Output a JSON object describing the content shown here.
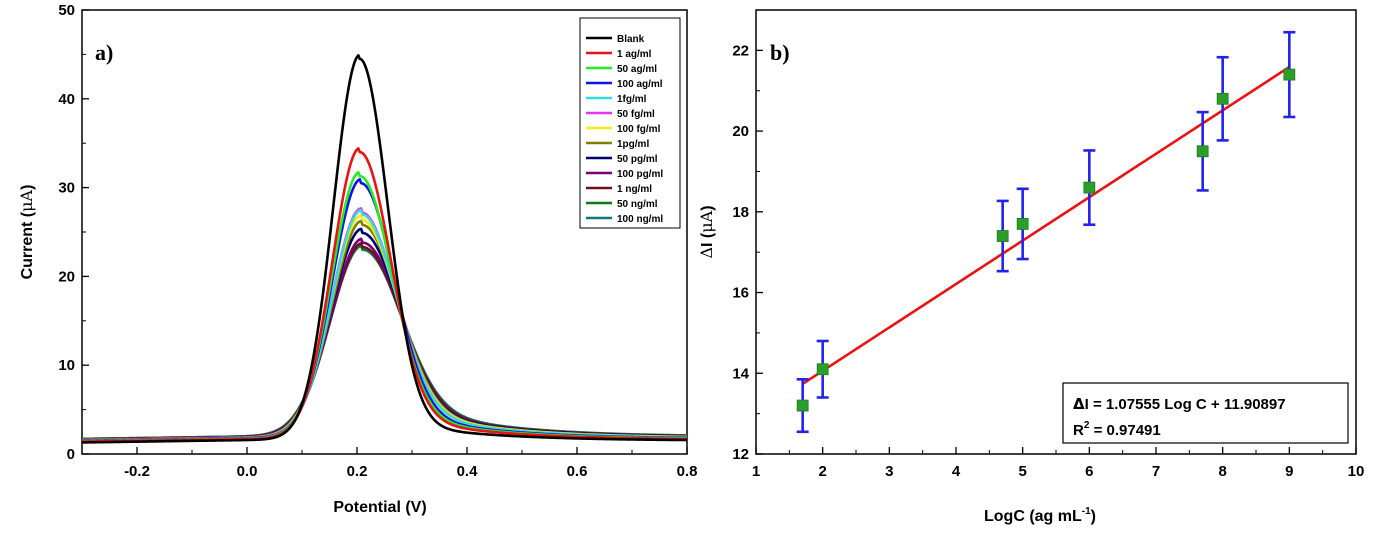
{
  "chart_data": [
    {
      "type": "line",
      "panel_label": "a)",
      "xlabel": "Potential (V)",
      "ylabel_main": "Current (",
      "ylabel_unit_symbol": "μA",
      "ylabel_close": ")",
      "xlim": [
        -0.3,
        0.8
      ],
      "ylim": [
        0,
        50
      ],
      "xticks": [
        -0.2,
        0.0,
        0.2,
        0.4,
        0.6,
        0.8
      ],
      "xtick_labels": [
        "-0.2",
        "0.0",
        "0.2",
        "0.4",
        "0.6",
        "0.8"
      ],
      "yticks": [
        0,
        10,
        20,
        30,
        40,
        50
      ],
      "ytick_labels": [
        "0",
        "10",
        "20",
        "30",
        "40",
        "50"
      ],
      "legend_position": "top-right",
      "series": [
        {
          "name": "Blank",
          "color": "#000000",
          "peak_x": 0.205,
          "peak": 44.5,
          "base_left": 1.3,
          "base_right": 1.5,
          "w_left": 0.048,
          "w_right": 0.05,
          "tail": 3.0
        },
        {
          "name": "1 ag/ml",
          "color": "#ee1111",
          "peak_x": 0.205,
          "peak": 34.0,
          "base_left": 1.4,
          "base_right": 1.6,
          "w_left": 0.05,
          "w_right": 0.055,
          "tail": 4.0
        },
        {
          "name": "50 ag/ml",
          "color": "#22ee22",
          "peak_x": 0.205,
          "peak": 31.3,
          "base_left": 1.45,
          "base_right": 1.65,
          "w_left": 0.051,
          "w_right": 0.057,
          "tail": 4.3
        },
        {
          "name": "100 ag/ml",
          "color": "#1111ee",
          "peak_x": 0.207,
          "peak": 30.5,
          "base_left": 1.5,
          "base_right": 1.7,
          "w_left": 0.052,
          "w_right": 0.058,
          "tail": 4.5
        },
        {
          "name": "1fg/ml",
          "color": "#33dddd",
          "peak_x": 0.208,
          "peak": 27.0,
          "base_left": 1.5,
          "base_right": 1.75,
          "w_left": 0.054,
          "w_right": 0.061,
          "tail": 5.0
        },
        {
          "name": "50 fg/ml",
          "color": "#ee33ee",
          "peak_x": 0.208,
          "peak": 27.2,
          "base_left": 1.55,
          "base_right": 1.75,
          "w_left": 0.054,
          "w_right": 0.061,
          "tail": 5.0
        },
        {
          "name": "100 fg/ml",
          "color": "#eeee11",
          "peak_x": 0.208,
          "peak": 26.4,
          "base_left": 1.55,
          "base_right": 1.8,
          "w_left": 0.055,
          "w_right": 0.062,
          "tail": 5.2
        },
        {
          "name": "1pg/ml",
          "color": "#808000",
          "peak_x": 0.209,
          "peak": 25.8,
          "base_left": 1.6,
          "base_right": 1.8,
          "w_left": 0.055,
          "w_right": 0.063,
          "tail": 5.3
        },
        {
          "name": "50 pg/ml",
          "color": "#000077",
          "peak_x": 0.209,
          "peak": 24.9,
          "base_left": 1.6,
          "base_right": 1.85,
          "w_left": 0.056,
          "w_right": 0.064,
          "tail": 5.4
        },
        {
          "name": "100 pg/ml",
          "color": "#770077",
          "peak_x": 0.21,
          "peak": 23.8,
          "base_left": 1.65,
          "base_right": 1.85,
          "w_left": 0.057,
          "w_right": 0.065,
          "tail": 5.5
        },
        {
          "name": "1 ng/ml",
          "color": "#771111",
          "peak_x": 0.21,
          "peak": 23.3,
          "base_left": 1.65,
          "base_right": 1.9,
          "w_left": 0.058,
          "w_right": 0.066,
          "tail": 5.6
        },
        {
          "name": "50 ng/ml",
          "color": "#117711",
          "peak_x": 0.21,
          "peak": 23.2,
          "base_left": 1.7,
          "base_right": 1.9,
          "w_left": 0.058,
          "w_right": 0.066,
          "tail": 5.7
        },
        {
          "name": "100 ng/ml",
          "color": "#117777",
          "peak_x": 0.21,
          "peak": 23.0,
          "base_left": 1.7,
          "base_right": 1.95,
          "w_left": 0.059,
          "w_right": 0.067,
          "tail": 5.8
        }
      ]
    },
    {
      "type": "scatter",
      "panel_label": "b)",
      "xlabel_main": "LogC (ag mL",
      "xlabel_sup": "-1",
      "xlabel_close": ")",
      "ylabel_symbol": "Δ",
      "ylabel_main": "I (",
      "ylabel_unit_symbol": "μA",
      "ylabel_close": ")",
      "xlim": [
        1,
        10
      ],
      "ylim": [
        12,
        23
      ],
      "xticks": [
        1,
        2,
        3,
        4,
        5,
        6,
        7,
        8,
        9,
        10
      ],
      "xtick_labels": [
        "1",
        "2",
        "3",
        "4",
        "5",
        "6",
        "7",
        "8",
        "9",
        "10"
      ],
      "yticks": [
        12,
        14,
        16,
        18,
        20,
        22
      ],
      "ytick_labels": [
        "12",
        "14",
        "16",
        "18",
        "20",
        "22"
      ],
      "points": [
        {
          "x": 1.7,
          "y": 13.2,
          "err": 0.65
        },
        {
          "x": 2.0,
          "y": 14.1,
          "err": 0.7
        },
        {
          "x": 4.7,
          "y": 17.4,
          "err": 0.87
        },
        {
          "x": 5.0,
          "y": 17.7,
          "err": 0.87
        },
        {
          "x": 6.0,
          "y": 18.6,
          "err": 0.92
        },
        {
          "x": 7.7,
          "y": 19.5,
          "err": 0.97
        },
        {
          "x": 8.0,
          "y": 20.8,
          "err": 1.03
        },
        {
          "x": 9.0,
          "y": 21.4,
          "err": 1.05
        }
      ],
      "fit": {
        "slope": 1.07555,
        "intercept": 11.90897,
        "x_range": [
          1.7,
          9.0
        ]
      },
      "fit_color": "#ee1111",
      "marker_color": "#2a9d2a",
      "errorbar_color": "#2222ee",
      "equation_symbol": "Δ",
      "equation_text": "I = 1.07555 Log C + 11.90897",
      "r2_main": "R",
      "r2_sup": "2",
      "r2_value": " = 0.97491",
      "annotation_position": "bottom-right"
    }
  ]
}
